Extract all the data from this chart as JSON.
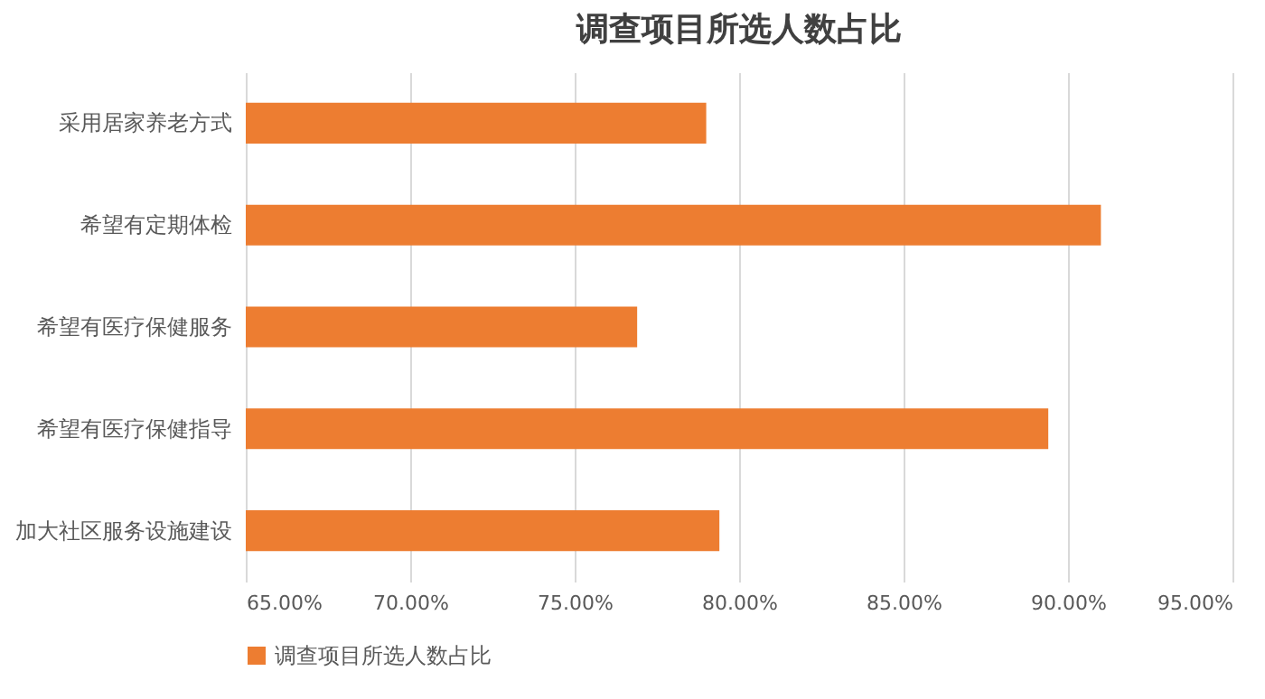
{
  "chart_data": {
    "type": "bar",
    "orientation": "horizontal",
    "title": "调查项目所选人数占比",
    "categories": [
      "采用居家养老方式",
      "希望有定期体检",
      "希望有医疗保健服务",
      "希望有医疗保健指导",
      "加大社区服务设施建设"
    ],
    "series": [
      {
        "name": "调查项目所选人数占比",
        "color": "#ed7d31",
        "values": [
          79.0,
          91.0,
          76.9,
          89.4,
          79.4
        ]
      }
    ],
    "xlim": [
      65,
      95
    ],
    "xticks": [
      {
        "value": 65,
        "label": "65.00%"
      },
      {
        "value": 70,
        "label": "70.00%"
      },
      {
        "value": 75,
        "label": "75.00%"
      },
      {
        "value": 80,
        "label": "80.00%"
      },
      {
        "value": 85,
        "label": "85.00%"
      },
      {
        "value": 90,
        "label": "90.00%"
      },
      {
        "value": 95,
        "label": "95.00%"
      }
    ],
    "grid": "x",
    "legend": "bottom"
  }
}
